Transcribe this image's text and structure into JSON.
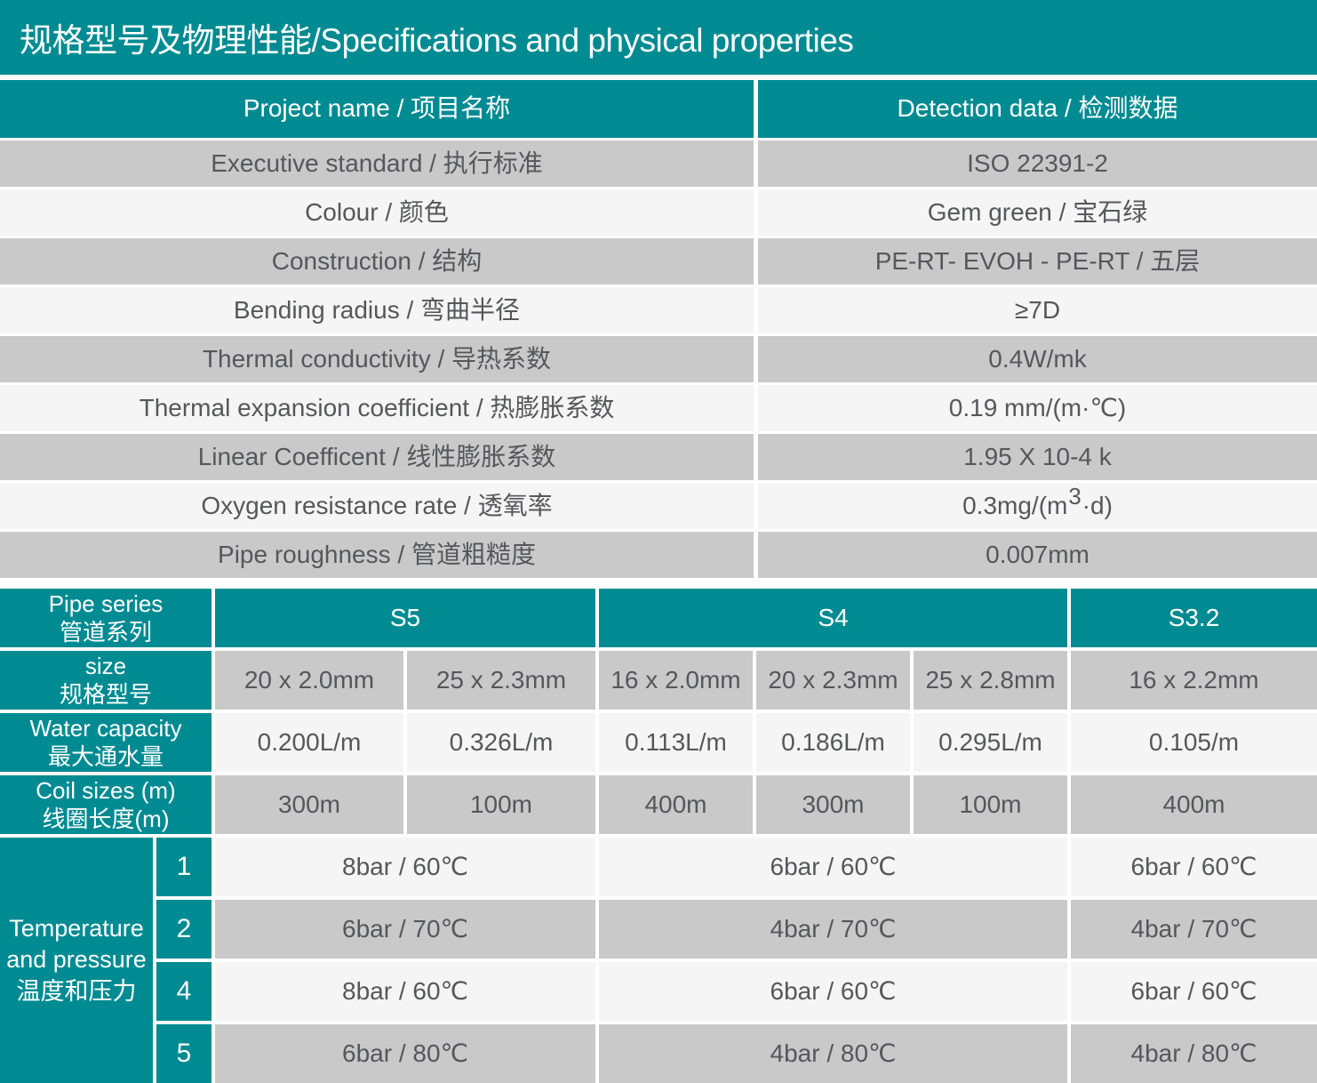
{
  "title": "规格型号及物理性能/Specifications and physical properties",
  "colors": {
    "teal": "#008b92",
    "row_gray": "#c9c9ca",
    "row_light": "#f5f6f6",
    "header_text": "#ffffff",
    "body_text": "#56575a"
  },
  "properties_table": {
    "headers": {
      "name": "Project name / 项目名称",
      "data": "Detection data / 检测数据"
    },
    "rows": [
      {
        "label": "Executive standard / 执行标准",
        "value": "ISO 22391-2"
      },
      {
        "label": "Colour / 颜色",
        "value": "Gem green / 宝石绿"
      },
      {
        "label": "Construction / 结构",
        "value": "PE-RT- EVOH - PE-RT / 五层"
      },
      {
        "label": "Bending radius / 弯曲半径",
        "value": "≥7D"
      },
      {
        "label": "Thermal conductivity / 导热系数",
        "value": "0.4W/mk"
      },
      {
        "label": "Thermal expansion coefficient / 热膨胀系数",
        "value": "0.19 mm/(m·℃)"
      },
      {
        "label": "Linear Coefficent / 线性膨胀系数",
        "value": "1.95 X 10-4 k"
      },
      {
        "label": "Oxygen resistance rate  / 透氧率",
        "value_prefix": "0.3mg/(m",
        "value_sup": "3",
        "value_suffix": "·d)"
      },
      {
        "label": "Pipe roughness / 管道粗糙度",
        "value": "0.007mm"
      }
    ]
  },
  "series_table": {
    "row_labels": {
      "pipe_series": {
        "en": "Pipe series",
        "zh": "管道系列"
      },
      "size": {
        "en": "size",
        "zh": "规格型号"
      },
      "water": {
        "en": "Water capacity",
        "zh": "最大通水量"
      },
      "coil": {
        "en": "Coil sizes (m)",
        "zh": "线圈长度(m)"
      }
    },
    "series": [
      "S5",
      "S4",
      "S3.2"
    ],
    "sizes": [
      "20 x 2.0mm",
      "25 x 2.3mm",
      "16 x 2.0mm",
      "20 x 2.3mm",
      "25 x 2.8mm",
      "16 x 2.2mm"
    ],
    "water_capacity": [
      "0.200L/m",
      "0.326L/m",
      "0.113L/m",
      "0.186L/m",
      "0.295L/m",
      "0.105/m"
    ],
    "coil_sizes": [
      "300m",
      "100m",
      "400m",
      "300m",
      "100m",
      "400m"
    ],
    "temperature": {
      "label": {
        "en1": "Temperature",
        "en2": "and pressure",
        "zh": "温度和压力"
      },
      "rows": [
        {
          "num": "1",
          "s5": "8bar / 60℃",
          "s4": "6bar / 60℃",
          "s32": "6bar / 60℃"
        },
        {
          "num": "2",
          "s5": "6bar / 70℃",
          "s4": "4bar / 70℃",
          "s32": "4bar / 70℃"
        },
        {
          "num": "4",
          "s5": "8bar / 60℃",
          "s4": "6bar / 60℃",
          "s32": "6bar / 60℃"
        },
        {
          "num": "5",
          "s5": "6bar / 80℃",
          "s4": "4bar / 80℃",
          "s32": "4bar / 80℃"
        }
      ]
    }
  }
}
